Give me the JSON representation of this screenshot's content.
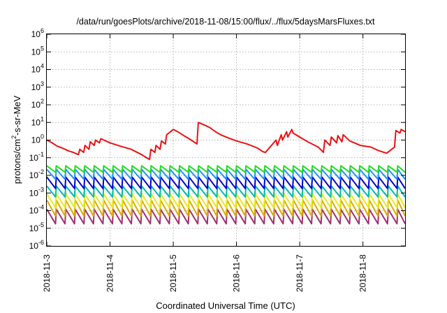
{
  "chart_data": {
    "type": "line",
    "title": "/data/run/goesPlots/archive/2018-11-08/15:00/flux/../flux/5daysMarsFluxes.txt",
    "xlabel": "Coordinated Universal Time (UTC)",
    "ylabel": {
      "prefix": "protons/cm",
      "sup": "2",
      "suffix": "-s-sr-MeV"
    },
    "yscale": "log",
    "ylim": [
      1e-06,
      1000000.0
    ],
    "xlim": [
      "2018-11-03T00:00",
      "2018-11-08T16:00"
    ],
    "grid": true,
    "y_ticks": [
      {
        "base": "10",
        "exp": "-6",
        "value": 1e-06
      },
      {
        "base": "10",
        "exp": "-5",
        "value": 1e-05
      },
      {
        "base": "10",
        "exp": "-4",
        "value": 0.0001
      },
      {
        "base": "10",
        "exp": "-3",
        "value": 0.001
      },
      {
        "base": "10",
        "exp": "-2",
        "value": 0.01
      },
      {
        "base": "10",
        "exp": "-1",
        "value": 0.1
      },
      {
        "base": "10",
        "exp": "0",
        "value": 1.0
      },
      {
        "base": "10",
        "exp": "1",
        "value": 10.0
      },
      {
        "base": "10",
        "exp": "2",
        "value": 100.0
      },
      {
        "base": "10",
        "exp": "3",
        "value": 1000.0
      },
      {
        "base": "10",
        "exp": "4",
        "value": 10000.0
      },
      {
        "base": "10",
        "exp": "5",
        "value": 100000.0
      },
      {
        "base": "10",
        "exp": "6",
        "value": 1000000.0
      }
    ],
    "x_ticks": [
      "2018-11-3",
      "2018-11-4",
      "2018-11-5",
      "2018-11-6",
      "2018-11-7",
      "2018-11-8"
    ],
    "series": [
      {
        "color": "#ee1111",
        "sawtooth": false,
        "x": [
          "2018-11-03T00:00",
          "2018-11-03T02:00",
          "2018-11-03T04:00",
          "2018-11-03T06:00",
          "2018-11-03T08:00",
          "2018-11-03T10:00",
          "2018-11-03T12:00",
          "2018-11-03T12:30",
          "2018-11-03T14:00",
          "2018-11-03T14:30",
          "2018-11-03T16:00",
          "2018-11-03T16:30",
          "2018-11-03T18:00",
          "2018-11-03T18:30",
          "2018-11-03T20:00",
          "2018-11-03T20:30",
          "2018-11-04T00:00",
          "2018-11-04T04:00",
          "2018-11-04T08:00",
          "2018-11-04T12:00",
          "2018-11-04T13:00",
          "2018-11-04T15:00",
          "2018-11-04T15:30",
          "2018-11-04T17:00",
          "2018-11-04T17:30",
          "2018-11-04T19:00",
          "2018-11-04T19:30",
          "2018-11-04T21:00",
          "2018-11-04T21:30",
          "2018-11-05T00:00",
          "2018-11-05T02:00",
          "2018-11-05T04:00",
          "2018-11-05T06:00",
          "2018-11-05T09:00",
          "2018-11-05T09:30",
          "2018-11-05T12:00",
          "2018-11-05T14:00",
          "2018-11-05T16:00",
          "2018-11-05T18:00",
          "2018-11-05T21:00",
          "2018-11-06T00:00",
          "2018-11-06T04:00",
          "2018-11-06T08:00",
          "2018-11-06T10:00",
          "2018-11-06T11:00",
          "2018-11-06T15:00",
          "2018-11-06T15:30",
          "2018-11-06T17:00",
          "2018-11-06T17:30",
          "2018-11-06T19:00",
          "2018-11-06T19:30",
          "2018-11-06T21:00",
          "2018-11-06T21:30",
          "2018-11-07T00:00",
          "2018-11-07T03:00",
          "2018-11-07T07:00",
          "2018-11-07T09:00",
          "2018-11-07T09:30",
          "2018-11-07T11:30",
          "2018-11-07T12:00",
          "2018-11-07T14:00",
          "2018-11-07T14:30",
          "2018-11-07T16:00",
          "2018-11-07T16:30",
          "2018-11-07T19:00",
          "2018-11-07T23:00",
          "2018-11-08T03:00",
          "2018-11-08T06:00",
          "2018-11-08T08:00",
          "2018-11-08T09:00",
          "2018-11-08T12:00",
          "2018-11-08T12:30",
          "2018-11-08T14:00",
          "2018-11-08T14:30",
          "2018-11-08T16:00"
        ],
        "values": [
          1.0,
          0.7,
          0.45,
          0.35,
          0.25,
          0.2,
          0.15,
          0.3,
          0.2,
          0.5,
          0.3,
          0.8,
          0.5,
          1.0,
          0.7,
          1.2,
          0.7,
          0.45,
          0.3,
          0.15,
          0.12,
          0.08,
          0.3,
          0.2,
          0.5,
          0.3,
          0.9,
          0.6,
          2.0,
          4.0,
          2.8,
          1.8,
          1.2,
          0.6,
          10.0,
          7.0,
          5.0,
          3.0,
          2.0,
          1.3,
          0.9,
          0.6,
          0.35,
          0.22,
          0.2,
          1.0,
          0.5,
          2.0,
          1.0,
          3.0,
          1.5,
          4.0,
          2.5,
          1.5,
          0.8,
          0.4,
          0.2,
          1.0,
          0.5,
          1.5,
          0.7,
          1.8,
          0.8,
          2.0,
          0.9,
          0.5,
          0.4,
          0.25,
          0.2,
          0.18,
          0.4,
          3.5,
          2.5,
          4.0,
          3.0
        ]
      },
      {
        "color": "#22dd22",
        "sawtooth": true,
        "high": 0.035,
        "low": 0.015
      },
      {
        "color": "#1e90ff",
        "sawtooth": true,
        "high": 0.022,
        "low": 0.006
      },
      {
        "color": "#0000cc",
        "sawtooth": true,
        "high": 0.008,
        "low": 0.0018
      },
      {
        "color": "#00bbaa",
        "sawtooth": true,
        "high": 0.0025,
        "low": 0.0006
      },
      {
        "color": "#e8e820",
        "sawtooth": true,
        "high": 0.0009,
        "low": 0.00015
      },
      {
        "color": "#ddaa00",
        "sawtooth": true,
        "high": 0.0004,
        "low": 5e-05
      },
      {
        "color": "#a03070",
        "sawtooth": true,
        "high": 0.00012,
        "low": 1.8e-05
      }
    ],
    "sawtooth_period_hours": 3.6
  }
}
